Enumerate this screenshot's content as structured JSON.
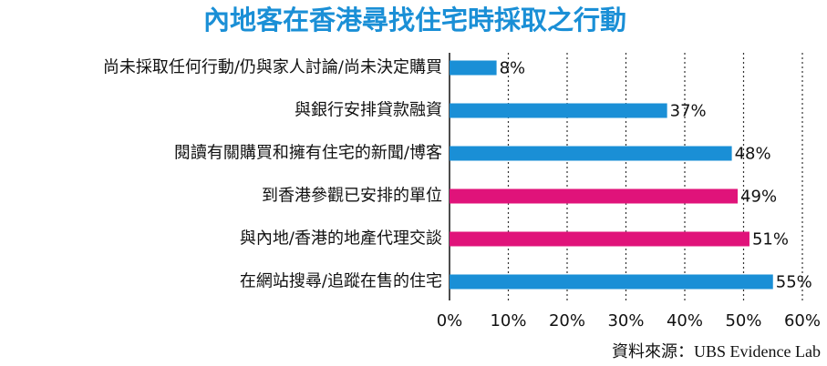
{
  "chart_data": {
    "type": "bar",
    "orientation": "horizontal",
    "title": "內地客在香港尋找住宅時採取之行動",
    "categories": [
      "尚未採取任何行動/仍與家人討論/尚未決定購買",
      "與銀行安排貸款融資",
      "閱讀有關購買和擁有住宅的新聞/博客",
      "到香港參觀已安排的單位",
      "與內地/香港的地產代理交談",
      "在網站搜尋/追蹤在售的住宅"
    ],
    "values": [
      8,
      37,
      48,
      49,
      51,
      55
    ],
    "value_labels": [
      "8%",
      "37%",
      "48%",
      "49%",
      "51%",
      "55%"
    ],
    "colors": [
      "#1a8fd6",
      "#1a8fd6",
      "#1a8fd6",
      "#e0137a",
      "#e0137a",
      "#1a8fd6"
    ],
    "xlim": [
      0,
      60
    ],
    "xticks": [
      {
        "value": 0,
        "label": "0%"
      },
      {
        "value": 10,
        "label": "10%"
      },
      {
        "value": 20,
        "label": "20%"
      },
      {
        "value": 30,
        "label": "30%"
      },
      {
        "value": 40,
        "label": "40%"
      },
      {
        "value": 50,
        "label": "50%"
      },
      {
        "value": 60,
        "label": "60%"
      }
    ],
    "grid": true,
    "source": "資料來源：UBS Evidence Lab"
  }
}
